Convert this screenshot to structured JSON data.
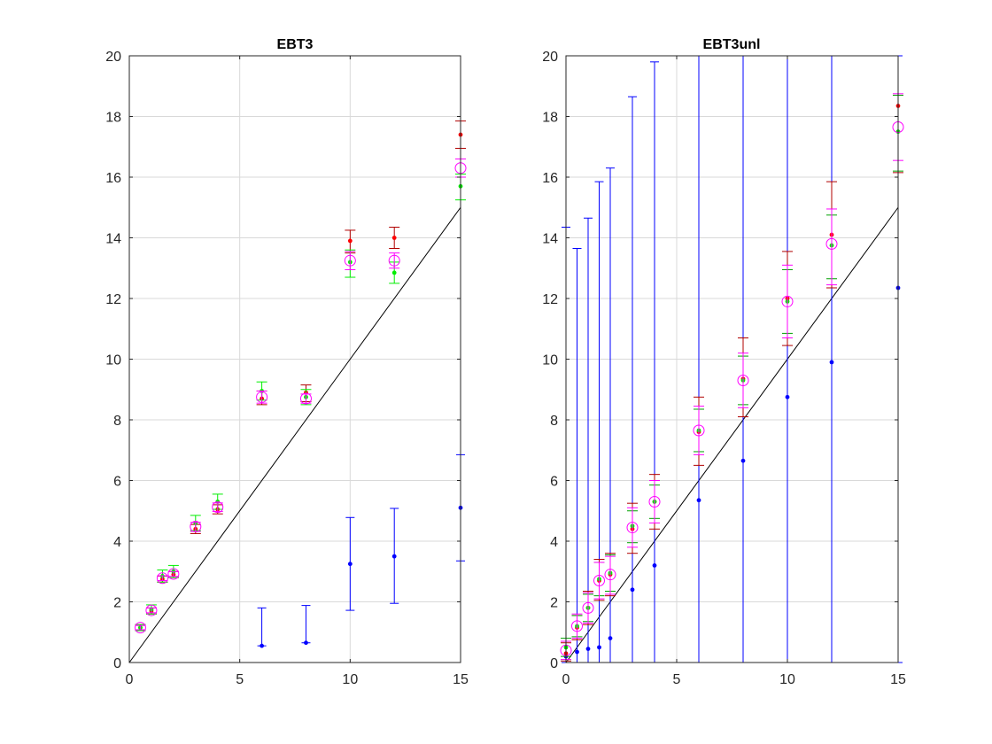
{
  "colors": {
    "red": "#ff0000",
    "green": "#00ee00",
    "blue": "#0000ff",
    "magenta": "#ff00ff",
    "darkred": "#b00000",
    "darkgreen": "#00a000",
    "grid": "#d9d9d9",
    "axis": "#262626",
    "line": "#000000"
  },
  "chart_data": [
    {
      "type": "scatter",
      "title": "EBT3",
      "xlabel": "",
      "ylabel": "",
      "xlim": [
        0,
        15
      ],
      "ylim": [
        0,
        20
      ],
      "grid": true,
      "xticks": [
        0,
        5,
        10,
        15
      ],
      "xtick_labels": [
        "0",
        "5",
        "10",
        "15"
      ],
      "yticks": [
        0,
        2,
        4,
        6,
        8,
        10,
        12,
        14,
        16,
        18,
        20
      ],
      "ytick_labels": [
        "0",
        "2",
        "4",
        "6",
        "8",
        "10",
        "12",
        "14",
        "16",
        "18",
        "20"
      ],
      "identity_line": {
        "x": [
          0,
          15
        ],
        "y": [
          0,
          15
        ]
      },
      "series": [
        {
          "color": "blue",
          "marker": "dot",
          "x": [
            6,
            8,
            10,
            12,
            15
          ],
          "y": [
            0.55,
            0.65,
            3.25,
            3.5,
            5.1
          ],
          "err_low": [
            0.55,
            0.65,
            1.72,
            1.95,
            3.35
          ],
          "err_high": [
            1.8,
            1.88,
            4.78,
            5.08,
            6.85
          ]
        },
        {
          "color": "red",
          "marker": "dot",
          "errcolor": "darkred",
          "x": [
            0.5,
            1,
            1.5,
            2,
            3,
            4,
            6,
            8,
            10,
            12,
            15
          ],
          "y": [
            1.15,
            1.7,
            2.75,
            2.9,
            4.4,
            5.05,
            8.7,
            8.9,
            13.9,
            14.0,
            17.4
          ],
          "err_low": [
            1.05,
            1.6,
            2.65,
            2.8,
            4.25,
            4.9,
            8.5,
            8.6,
            13.5,
            13.65,
            16.95
          ],
          "err_high": [
            1.25,
            1.8,
            2.85,
            3.0,
            4.55,
            5.2,
            8.95,
            9.15,
            14.25,
            14.35,
            17.85
          ]
        },
        {
          "color": "green",
          "marker": "dot",
          "errcolor": "green",
          "x": [
            0.5,
            1,
            1.5,
            2,
            3,
            4,
            6,
            8,
            10,
            12,
            15
          ],
          "y": [
            1.15,
            1.75,
            2.85,
            3.0,
            4.6,
            5.3,
            8.95,
            8.75,
            13.2,
            12.85,
            15.7
          ],
          "err_low": [
            1.05,
            1.6,
            2.65,
            2.8,
            4.35,
            5.05,
            8.65,
            8.5,
            12.7,
            12.5,
            15.25
          ],
          "err_high": [
            1.25,
            1.9,
            3.05,
            3.2,
            4.85,
            5.55,
            9.25,
            9.0,
            13.6,
            13.2,
            16.1
          ]
        },
        {
          "color": "magenta",
          "marker": "circle",
          "errcolor": "magenta",
          "x": [
            0.5,
            1,
            1.5,
            2,
            3,
            4,
            6,
            8,
            10,
            12,
            15
          ],
          "y": [
            1.15,
            1.72,
            2.78,
            2.92,
            4.48,
            5.12,
            8.75,
            8.7,
            13.25,
            13.25,
            16.3
          ],
          "err_low": [
            1.08,
            1.64,
            2.7,
            2.84,
            4.32,
            4.98,
            8.55,
            8.55,
            12.95,
            13.0,
            16.0
          ],
          "err_high": [
            1.22,
            1.8,
            2.86,
            3.0,
            4.62,
            5.26,
            8.95,
            8.85,
            13.55,
            13.5,
            16.6
          ]
        }
      ]
    },
    {
      "type": "scatter",
      "title": "EBT3unl",
      "xlabel": "",
      "ylabel": "",
      "xlim": [
        0,
        15
      ],
      "ylim": [
        0,
        20
      ],
      "grid": true,
      "xticks": [
        0,
        5,
        10,
        15
      ],
      "xtick_labels": [
        "0",
        "5",
        "10",
        "15"
      ],
      "yticks": [
        0,
        2,
        4,
        6,
        8,
        10,
        12,
        14,
        16,
        18,
        20
      ],
      "ytick_labels": [
        "0",
        "2",
        "4",
        "6",
        "8",
        "10",
        "12",
        "14",
        "16",
        "18",
        "20"
      ],
      "identity_line": {
        "x": [
          0,
          15
        ],
        "y": [
          0,
          15
        ]
      },
      "series": [
        {
          "color": "blue",
          "marker": "dot",
          "x": [
            0,
            0.5,
            1,
            1.5,
            2,
            3,
            4,
            6,
            8,
            10,
            12,
            15
          ],
          "y": [
            0.2,
            0.35,
            0.45,
            0.5,
            0.8,
            2.4,
            3.2,
            5.35,
            6.65,
            8.75,
            9.9,
            12.35
          ],
          "err_low": [
            0,
            0,
            0,
            0,
            0,
            0,
            0,
            0,
            0,
            0,
            0,
            0
          ],
          "err_high": [
            14.35,
            13.65,
            14.65,
            15.85,
            16.3,
            18.65,
            19.8,
            20,
            20,
            20,
            20,
            20
          ]
        },
        {
          "color": "red",
          "marker": "dot",
          "errcolor": "darkred",
          "x": [
            0,
            0.5,
            1,
            1.5,
            2,
            3,
            4,
            6,
            8,
            10,
            12,
            15
          ],
          "y": [
            0.3,
            1.15,
            1.8,
            2.7,
            2.9,
            4.4,
            5.3,
            7.6,
            9.35,
            12.0,
            14.1,
            18.35
          ],
          "err_low": [
            0.05,
            0.75,
            1.25,
            2.05,
            2.2,
            3.6,
            4.4,
            6.5,
            8.1,
            10.45,
            12.35,
            16.15
          ],
          "err_high": [
            0.65,
            1.55,
            2.35,
            3.4,
            3.6,
            5.25,
            6.2,
            8.75,
            10.7,
            13.55,
            15.85,
            18.7
          ]
        },
        {
          "color": "green",
          "marker": "dot",
          "errcolor": "darkgreen",
          "x": [
            0,
            0.5,
            1,
            1.5,
            2,
            3,
            4,
            6,
            8,
            10,
            12,
            15
          ],
          "y": [
            0.5,
            1.2,
            1.8,
            2.75,
            2.95,
            4.5,
            5.3,
            7.65,
            9.3,
            11.9,
            13.75,
            17.5
          ],
          "err_low": [
            0.2,
            0.85,
            1.35,
            2.2,
            2.35,
            3.95,
            4.75,
            6.95,
            8.5,
            10.85,
            12.65,
            16.2
          ],
          "err_high": [
            0.8,
            1.55,
            2.25,
            3.3,
            3.55,
            5.0,
            5.85,
            8.35,
            10.1,
            12.95,
            14.75,
            18.7
          ]
        },
        {
          "color": "magenta",
          "marker": "circle",
          "errcolor": "magenta",
          "x": [
            0,
            0.5,
            1,
            1.5,
            2,
            3,
            4,
            6,
            8,
            10,
            12,
            15
          ],
          "y": [
            0.4,
            1.2,
            1.8,
            2.7,
            2.9,
            4.45,
            5.3,
            7.65,
            9.3,
            11.9,
            13.8,
            17.65
          ],
          "err_low": [
            0.1,
            0.8,
            1.3,
            2.1,
            2.25,
            3.8,
            4.6,
            6.85,
            8.4,
            10.7,
            12.45,
            16.55
          ],
          "err_high": [
            0.7,
            1.6,
            2.3,
            3.3,
            3.5,
            5.1,
            6.0,
            8.45,
            10.2,
            13.1,
            14.95,
            18.75
          ]
        }
      ]
    }
  ]
}
